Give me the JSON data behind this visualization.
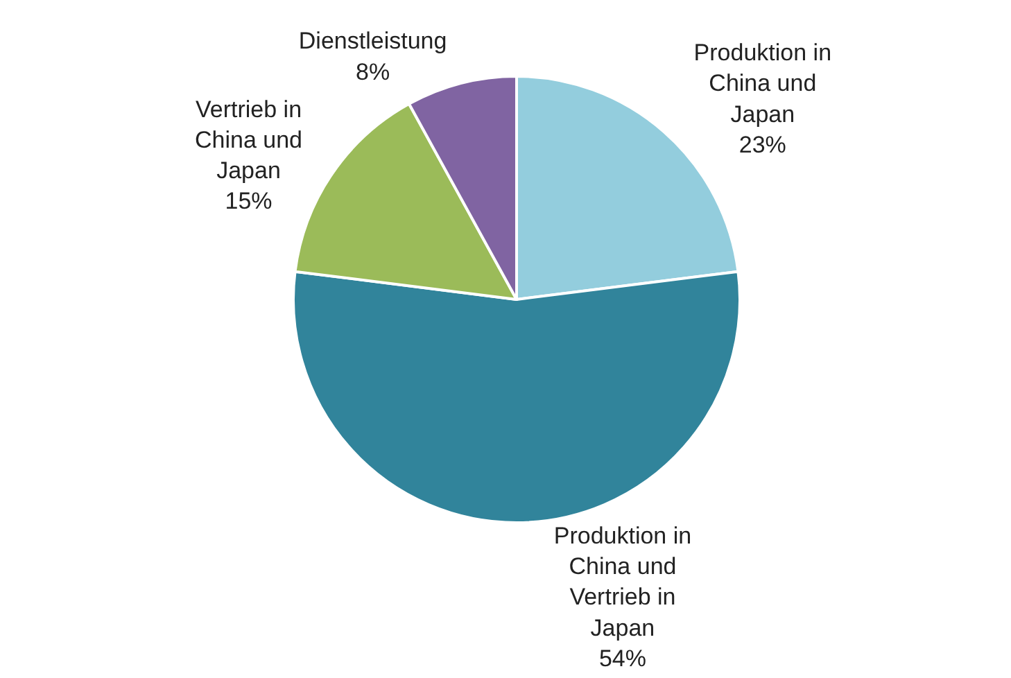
{
  "chart_data": {
    "type": "pie",
    "categories": [
      "Produktion in China und Japan",
      "Produktion in China und Vertrieb in Japan",
      "Vertrieb in China und Japan",
      "Dienstleistung"
    ],
    "values": [
      23,
      54,
      15,
      8
    ],
    "value_labels": [
      "23%",
      "54%",
      "15%",
      "8%"
    ],
    "colors": [
      "#93cddd",
      "#31849b",
      "#9bbb59",
      "#8064a2"
    ],
    "legend": false
  }
}
